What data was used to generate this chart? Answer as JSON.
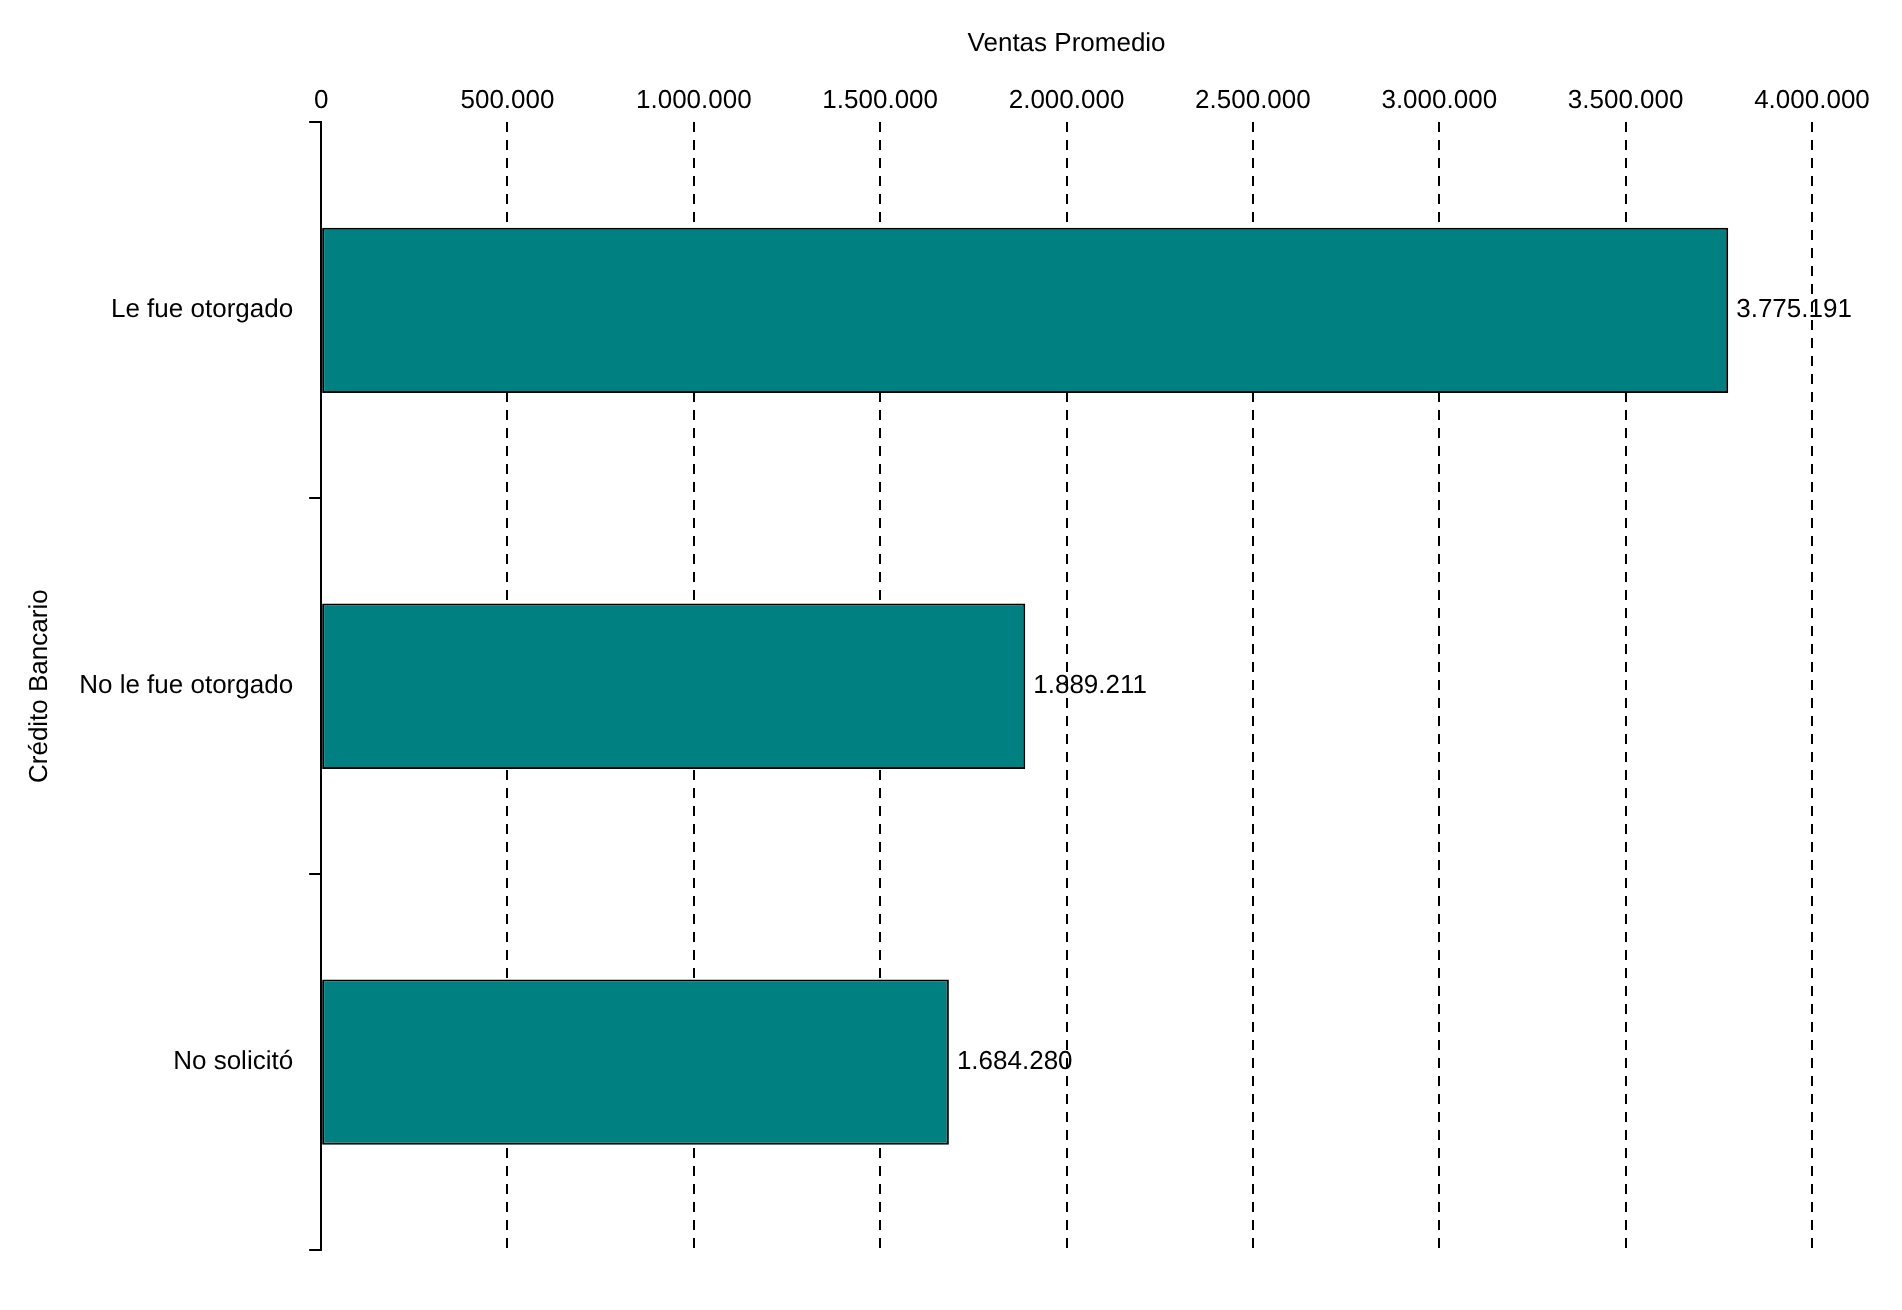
{
  "chart_data": {
    "type": "bar",
    "orientation": "horizontal",
    "xlabel": "Ventas Promedio",
    "ylabel": "Crédito Bancario",
    "categories": [
      "Le fue otorgado",
      "No le fue otorgado",
      "No solicitó"
    ],
    "values": [
      3775191,
      1889211,
      1684280
    ],
    "value_labels": [
      "3.775.191",
      "1.889.211",
      "1.684.280"
    ],
    "color": "#008080",
    "xlim": [
      0,
      4000000
    ],
    "xticks": [
      0,
      {
        "value": 500000,
        "label": "500.000"
      },
      {
        "value": 1000000,
        "label": "1.000.000"
      },
      {
        "value": 1500000,
        "label": "1.500.000"
      },
      {
        "value": 2000000,
        "label": "2.000.000"
      },
      {
        "value": 2500000,
        "label": "2.500.000"
      },
      {
        "value": 3000000,
        "label": "3.000.000"
      },
      {
        "value": 3500000,
        "label": "3.500.000"
      },
      {
        "value": 4000000,
        "label": "4.000.000"
      }
    ],
    "grid": "x",
    "legend": false
  }
}
